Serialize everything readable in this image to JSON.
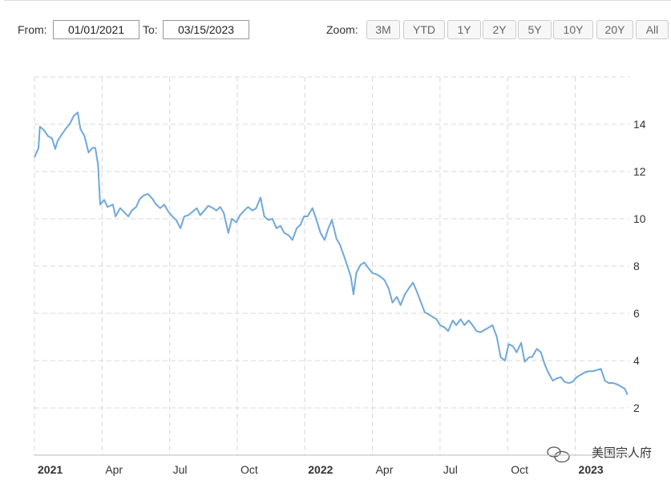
{
  "controls": {
    "from_label": "From:",
    "from_value": "01/01/2021",
    "to_label": "To:",
    "to_value": "03/15/2023",
    "zoom_label": "Zoom:",
    "zoom_buttons": [
      "3M",
      "YTD",
      "1Y",
      "2Y",
      "5Y",
      "10Y",
      "20Y",
      "All"
    ]
  },
  "watermark": "美国宗人府",
  "chart_data": {
    "type": "line",
    "color": "#6fa8dc",
    "grid": true,
    "xlim": [
      2021,
      2023.2
    ],
    "ylim": [
      0,
      16
    ],
    "xticks": [
      {
        "value": 2021,
        "label": "2021"
      },
      {
        "value": 2021.25,
        "label": "Apr"
      },
      {
        "value": 2021.5,
        "label": "Jul"
      },
      {
        "value": 2021.75,
        "label": "Oct"
      },
      {
        "value": 2022,
        "label": "2022"
      },
      {
        "value": 2022.25,
        "label": "Apr"
      },
      {
        "value": 2022.5,
        "label": "Jul"
      },
      {
        "value": 2022.75,
        "label": "Oct"
      },
      {
        "value": 2023,
        "label": "2023"
      }
    ],
    "yticks": [
      2,
      4,
      6,
      8,
      10,
      12,
      14
    ],
    "x": [
      2021.0,
      2021.015,
      2021.02,
      2021.035,
      2021.05,
      2021.065,
      2021.077,
      2021.086,
      2021.1,
      2021.115,
      2021.13,
      2021.145,
      2021.16,
      2021.17,
      2021.185,
      2021.2,
      2021.215,
      2021.225,
      2021.235,
      2021.243,
      2021.258,
      2021.27,
      2021.29,
      2021.3,
      2021.317,
      2021.33,
      2021.347,
      2021.36,
      2021.376,
      2021.39,
      2021.406,
      2021.42,
      2021.436,
      2021.45,
      2021.465,
      2021.48,
      2021.495,
      2021.51,
      2021.524,
      2021.54,
      2021.554,
      2021.569,
      2021.58,
      2021.6,
      2021.613,
      2021.628,
      2021.643,
      2021.66,
      2021.673,
      2021.687,
      2021.7,
      2021.717,
      2021.73,
      2021.747,
      2021.76,
      2021.776,
      2021.79,
      2021.806,
      2021.82,
      2021.836,
      2021.85,
      2021.865,
      2021.88,
      2021.895,
      2021.91,
      2021.924,
      2021.94,
      2021.954,
      2021.97,
      2021.984,
      2021.997,
      2022.01,
      2022.028,
      2022.043,
      2022.058,
      2022.073,
      2022.087,
      2022.1,
      2022.117,
      2022.13,
      2022.147,
      2022.16,
      2022.17,
      2022.18,
      2022.19,
      2022.206,
      2022.22,
      2022.236,
      2022.25,
      2022.265,
      2022.28,
      2022.295,
      2022.31,
      2022.324,
      2022.34,
      2022.354,
      2022.37,
      2022.384,
      2022.4,
      2022.413,
      2022.43,
      2022.443,
      2022.458,
      2022.473,
      2022.487,
      2022.5,
      2022.517,
      2022.53,
      2022.547,
      2022.56,
      2022.576,
      2022.59,
      2022.606,
      2022.62,
      2022.635,
      2022.65,
      2022.665,
      2022.68,
      2022.694,
      2022.71,
      2022.724,
      2022.74,
      2022.754,
      2022.77,
      2022.783,
      2022.8,
      2022.813,
      2022.83,
      2022.84,
      2022.858,
      2022.873,
      2022.887,
      2022.9,
      2022.917,
      2022.932,
      2022.947,
      2022.96,
      2022.976,
      2022.99,
      2023.006,
      2023.02,
      2023.035,
      2023.05,
      2023.065,
      2023.08,
      2023.095,
      2023.11,
      2023.124,
      2023.14,
      2023.154,
      2023.17,
      2023.184,
      2023.193
    ],
    "values": [
      12.6,
      13.0,
      13.9,
      13.75,
      13.5,
      13.4,
      12.95,
      13.3,
      13.55,
      13.8,
      14.0,
      14.35,
      14.5,
      13.8,
      13.5,
      12.8,
      13.0,
      13.0,
      12.3,
      10.6,
      10.8,
      10.5,
      10.6,
      10.1,
      10.45,
      10.3,
      10.1,
      10.35,
      10.5,
      10.85,
      11.0,
      11.05,
      10.85,
      10.6,
      10.45,
      10.6,
      10.3,
      10.1,
      9.95,
      9.6,
      10.1,
      10.15,
      10.25,
      10.45,
      10.15,
      10.35,
      10.55,
      10.45,
      10.35,
      10.5,
      10.25,
      9.4,
      10.0,
      9.85,
      10.15,
      10.35,
      10.5,
      10.35,
      10.45,
      10.9,
      10.1,
      9.95,
      10.0,
      9.6,
      9.7,
      9.4,
      9.3,
      9.1,
      9.6,
      9.75,
      10.1,
      10.1,
      10.45,
      9.95,
      9.4,
      9.1,
      9.6,
      9.95,
      9.15,
      8.9,
      8.35,
      7.9,
      7.55,
      6.8,
      7.7,
      8.05,
      8.15,
      7.9,
      7.7,
      7.65,
      7.55,
      7.4,
      7.05,
      6.45,
      6.7,
      6.35,
      6.8,
      7.05,
      7.3,
      6.95,
      6.45,
      6.05,
      5.95,
      5.85,
      5.75,
      5.5,
      5.4,
      5.25,
      5.7,
      5.5,
      5.75,
      5.5,
      5.7,
      5.5,
      5.25,
      5.2,
      5.3,
      5.4,
      5.5,
      5.0,
      4.15,
      4.0,
      4.7,
      4.6,
      4.35,
      4.75,
      3.95,
      4.15,
      4.15,
      4.5,
      4.35,
      3.85,
      3.5,
      3.15,
      3.25,
      3.3,
      3.1,
      3.05,
      3.1,
      3.3,
      3.4,
      3.5,
      3.55,
      3.55,
      3.6,
      3.65,
      3.15,
      3.05,
      3.05,
      3.0,
      2.9,
      2.8,
      2.55
    ]
  }
}
